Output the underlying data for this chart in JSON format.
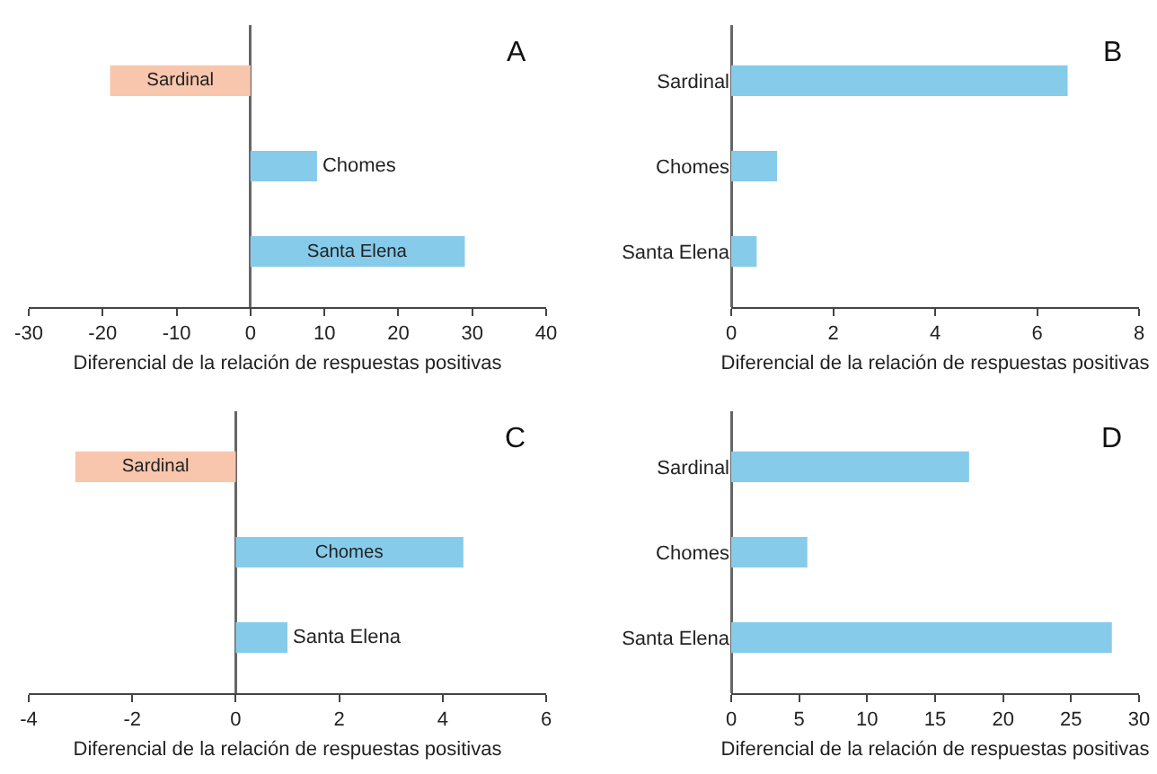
{
  "chart_data": [
    {
      "type": "bar",
      "orientation": "horizontal",
      "categories": [
        "Sardinal",
        "Chomes",
        "Santa Elena"
      ],
      "values": [
        -19,
        9,
        29
      ],
      "colors": [
        "#f8c6ad",
        "#87cbeb",
        "#87cbeb"
      ],
      "xlim": [
        -30,
        40
      ],
      "xticks": [
        -30,
        -20,
        -10,
        0,
        10,
        20,
        30,
        40
      ],
      "xlabel": "Diferencial de la relación de respuestas positivas",
      "annotations": [
        "A"
      ],
      "tick_labels": "x"
    },
    {
      "type": "bar",
      "orientation": "horizontal",
      "categories": [
        "Sardinal",
        "Chomes",
        "Santa Elena"
      ],
      "values": [
        6.6,
        0.9,
        0.5
      ],
      "colors": [
        "#87cbeb",
        "#87cbeb",
        "#87cbeb"
      ],
      "xlim": [
        0,
        8
      ],
      "xticks": [
        0,
        2,
        4,
        6,
        8
      ],
      "xlabel": "Diferencial de la relación de respuestas positivas",
      "annotations": [
        "B"
      ]
    },
    {
      "type": "bar",
      "orientation": "horizontal",
      "categories": [
        "Sardinal",
        "Chomes",
        "Santa Elena"
      ],
      "values": [
        -3.1,
        4.4,
        1
      ],
      "colors": [
        "#f8c6ad",
        "#87cbeb",
        "#87cbeb"
      ],
      "xlim": [
        -4,
        6
      ],
      "xticks": [
        -4,
        -2,
        0,
        2,
        4,
        6
      ],
      "xlabel": "Diferencial de la relación de respuestas positivas",
      "annotations": [
        "C"
      ],
      "tick_labels": "x"
    },
    {
      "type": "bar",
      "orientation": "horizontal",
      "categories": [
        "Sardinal",
        "Chomes",
        "Santa Elena"
      ],
      "values": [
        17.5,
        5.6,
        28
      ],
      "colors": [
        "#87cbeb",
        "#87cbeb",
        "#87cbeb"
      ],
      "xlim": [
        0,
        30
      ],
      "xticks": [
        0,
        5,
        10,
        15,
        20,
        25,
        30
      ],
      "xlabel": "Diferencial de la relación de respuestas positivas",
      "annotations": [
        "D"
      ]
    }
  ]
}
